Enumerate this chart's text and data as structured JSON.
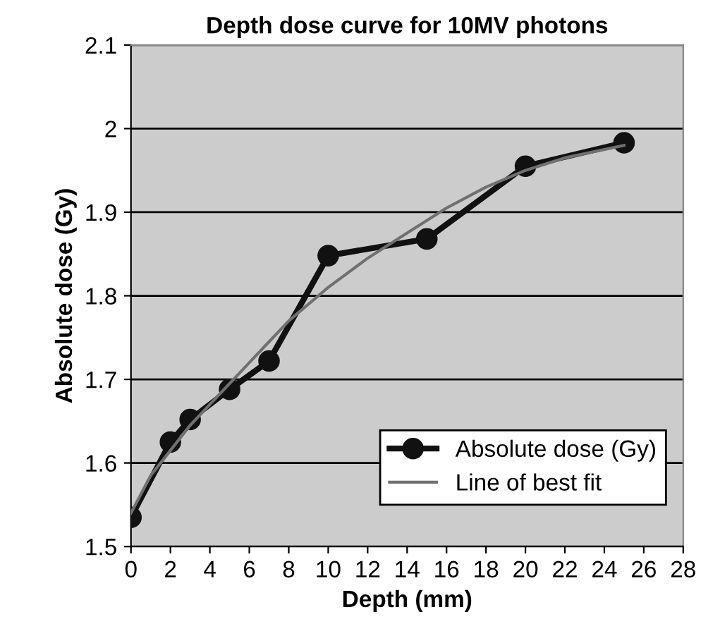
{
  "chart_data": {
    "type": "line",
    "title": "Depth dose curve for 10MV photons",
    "xlabel": "Depth (mm)",
    "ylabel": "Absolute dose (Gy)",
    "xlim": [
      0,
      28
    ],
    "xticks": [
      0,
      2,
      4,
      6,
      8,
      10,
      12,
      14,
      16,
      18,
      20,
      22,
      24,
      26,
      28
    ],
    "ylim": [
      1.5,
      2.1
    ],
    "yticks": [
      1.5,
      1.6,
      1.7,
      1.8,
      1.9,
      2,
      2.1
    ],
    "grid": "y",
    "legend": "bottom right",
    "series": [
      {
        "name": "Absolute dose (Gy)",
        "color": "#111111",
        "marker": "circle",
        "x": [
          0,
          2,
          3,
          5,
          7,
          10,
          15,
          20,
          25
        ],
        "values": [
          1.535,
          1.625,
          1.652,
          1.688,
          1.722,
          1.848,
          1.868,
          1.955,
          1.983
        ]
      },
      {
        "name": "Line of best fit",
        "color": "#707070",
        "marker": "none",
        "x": [
          0,
          1,
          2,
          3,
          4,
          5,
          6,
          7,
          8,
          9,
          10,
          12,
          14,
          16,
          18,
          20,
          22,
          25
        ],
        "values": [
          1.54,
          1.585,
          1.615,
          1.645,
          1.67,
          1.695,
          1.72,
          1.745,
          1.77,
          1.79,
          1.81,
          1.845,
          1.875,
          1.905,
          1.93,
          1.95,
          1.965,
          1.98
        ]
      }
    ]
  }
}
